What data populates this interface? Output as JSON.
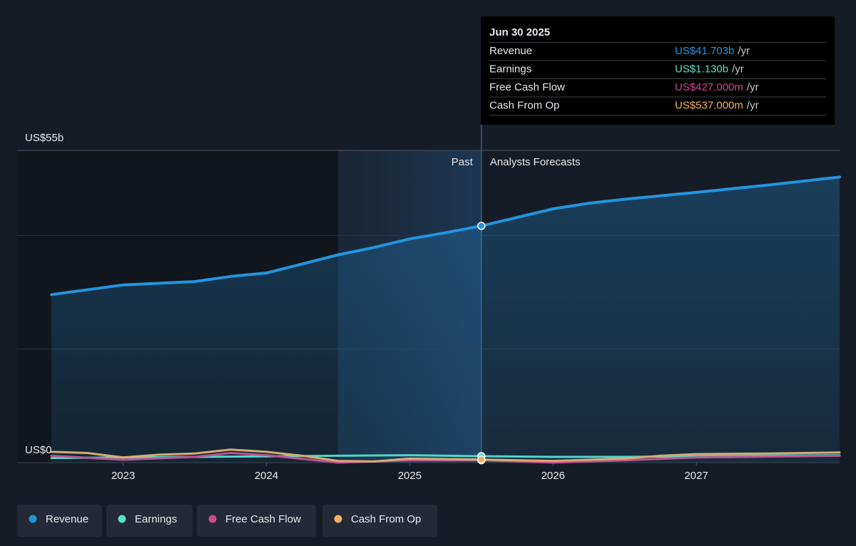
{
  "chart_data": {
    "type": "line",
    "xlim": [
      2022.26,
      2028
    ],
    "xticks": [
      2023,
      2024,
      2025,
      2026,
      2027
    ],
    "ylim": [
      0,
      55
    ],
    "yticks": [
      {
        "value": 0,
        "label": "US$0"
      },
      {
        "value": 55,
        "label": "US$55b"
      }
    ],
    "ygrid": [
      20,
      40
    ],
    "grid": true,
    "divider_x": 2025.5,
    "highlight_x": [
      2024.5,
      2025.5
    ],
    "past_label": "Past",
    "forecast_label": "Analysts Forecasts",
    "legend_position": "bottom-left",
    "series": [
      {
        "name": "Revenue",
        "color": "#2394df",
        "area": true,
        "x": [
          2022.5,
          2023,
          2023.5,
          2023.75,
          2024,
          2024.25,
          2024.5,
          2024.75,
          2025,
          2025.25,
          2025.5,
          2025.75,
          2026,
          2026.25,
          2026.5,
          2027,
          2027.5,
          2028
        ],
        "values": [
          29.6,
          31.3,
          31.9,
          32.8,
          33.4,
          35.0,
          36.6,
          37.9,
          39.4,
          40.5,
          41.703,
          43.2,
          44.7,
          45.7,
          46.4,
          47.6,
          48.9,
          50.3
        ]
      },
      {
        "name": "Earnings",
        "color": "#58e0c8",
        "x": [
          2022.5,
          2023,
          2023.5,
          2024,
          2024.5,
          2025,
          2025.5,
          2026,
          2026.5,
          2027,
          2027.5,
          2028
        ],
        "values": [
          0.8,
          0.9,
          1.0,
          1.1,
          1.2,
          1.3,
          1.13,
          1.0,
          1.0,
          1.1,
          1.2,
          1.3
        ]
      },
      {
        "name": "Free Cash Flow",
        "color": "#d04a8a",
        "x": [
          2022.5,
          2023,
          2023.5,
          2023.75,
          2024,
          2024.5,
          2025,
          2025.5,
          2026,
          2026.5,
          2027,
          2028
        ],
        "values": [
          1.2,
          0.5,
          1.0,
          1.7,
          1.3,
          0.0,
          0.4,
          0.427,
          0.0,
          0.4,
          0.9,
          1.2
        ]
      },
      {
        "name": "Cash From Op",
        "color": "#f0b060",
        "x": [
          2022.5,
          2022.75,
          2023,
          2023.25,
          2023.5,
          2023.75,
          2024,
          2024.25,
          2024.5,
          2024.75,
          2025,
          2025.5,
          2026,
          2026.5,
          2026.75,
          2027,
          2027.5,
          2028
        ],
        "values": [
          1.9,
          1.7,
          0.9,
          1.4,
          1.6,
          2.3,
          1.9,
          1.2,
          0.3,
          0.2,
          0.7,
          0.537,
          0.3,
          0.7,
          1.2,
          1.5,
          1.6,
          1.8
        ]
      }
    ],
    "tooltip": {
      "date": "Jun 30 2025",
      "rows": [
        {
          "label": "Revenue",
          "value": "US$41.703b",
          "unit": "/yr"
        },
        {
          "label": "Earnings",
          "value": "US$1.130b",
          "unit": "/yr"
        },
        {
          "label": "Free Cash Flow",
          "value": "US$427.000m",
          "unit": "/yr"
        },
        {
          "label": "Cash From Op",
          "value": "US$537.000m",
          "unit": "/yr"
        }
      ]
    }
  }
}
